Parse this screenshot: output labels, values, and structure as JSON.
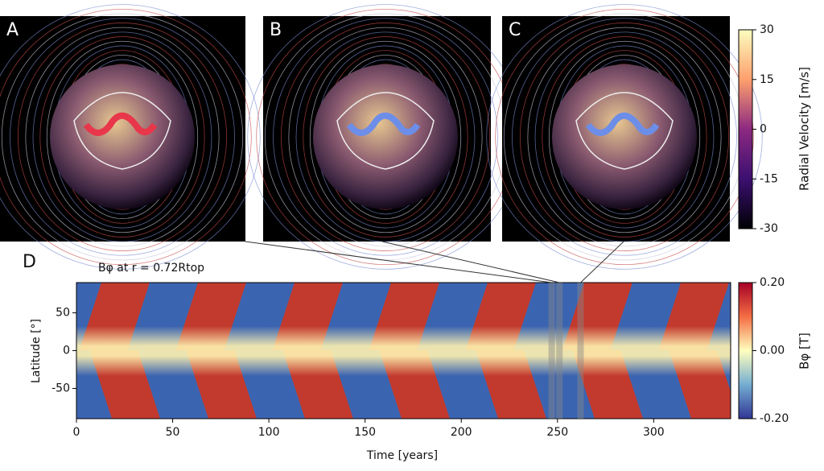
{
  "chart_data": [
    {
      "type": "image-panels",
      "panels": [
        "A",
        "B",
        "C"
      ],
      "colorbar": {
        "label": "Radial Velocity [m/s]",
        "lim": [
          -30,
          30
        ],
        "ticks": [
          30,
          15,
          0,
          -15,
          -30
        ]
      }
    },
    {
      "type": "heatmap",
      "panel": "D",
      "title": "Bφ at r = 0.72Rtop",
      "x_label": "Time [years]",
      "y_label": "Latitude [°]",
      "xlim": [
        0,
        340
      ],
      "xticks": [
        0,
        50,
        100,
        150,
        200,
        250,
        300
      ],
      "ylim": [
        -90,
        90
      ],
      "yticks": [
        50,
        0,
        -50
      ],
      "snapshots": [
        247,
        251,
        262
      ],
      "colorbar": {
        "label": "Bφ [T]",
        "lim": [
          -0.2,
          0.2
        ],
        "ticks": [
          {
            "value": 0.2,
            "label": "0.20"
          },
          {
            "value": 0,
            "label": "0.00"
          },
          {
            "value": -0.2,
            "label": "-0.20"
          }
        ]
      }
    }
  ]
}
